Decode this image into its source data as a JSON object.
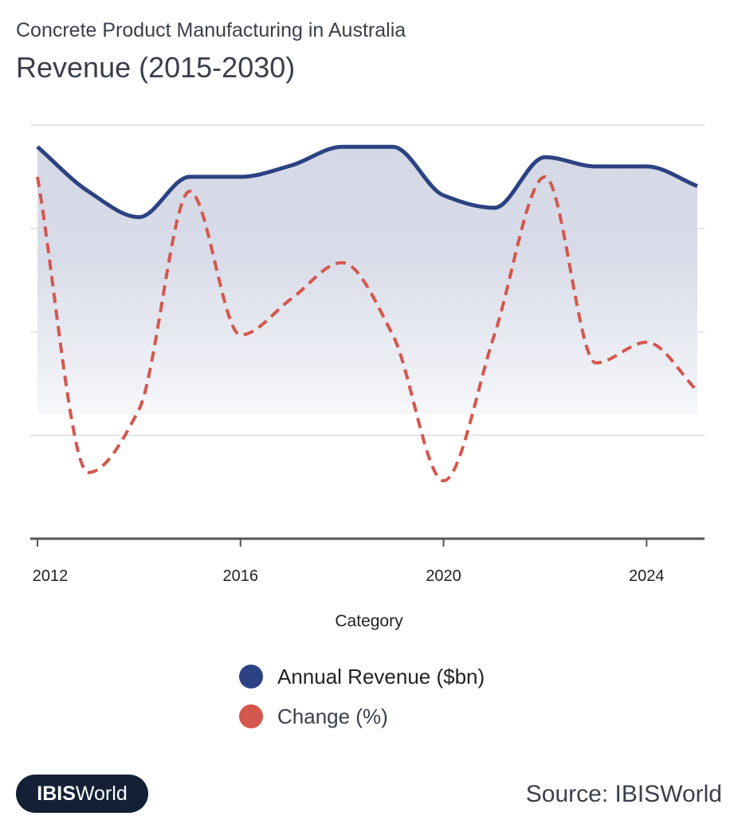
{
  "header": {
    "subtitle": "Concrete Product Manufacturing in Australia",
    "title": "Revenue (2015-2030)"
  },
  "chart_data": {
    "type": "line",
    "title": "Revenue (2015-2030)",
    "xlabel": "Category",
    "ylabel": "",
    "x": [
      2012,
      2013,
      2014,
      2015,
      2016,
      2017,
      2018,
      2019,
      2020,
      2021,
      2022,
      2023,
      2024,
      2025
    ],
    "xticks": [
      "2012",
      "2016",
      "2020",
      "2024"
    ],
    "xtick_values": [
      2012,
      2016,
      2020,
      2024
    ],
    "ylim": [
      0,
      4
    ],
    "grid": true,
    "legend_placement": "bottom",
    "series": [
      {
        "name": "Annual Revenue ($bn)",
        "color": "#2c4282",
        "style": "solid-area",
        "values": [
          3.79,
          3.36,
          3.11,
          3.5,
          3.5,
          3.61,
          3.79,
          3.79,
          3.32,
          3.2,
          3.69,
          3.6,
          3.6,
          3.41
        ]
      },
      {
        "name": "Change (%)",
        "color": "#d4574e",
        "style": "dashed",
        "values": [
          3.5,
          0.64,
          1.25,
          3.36,
          1.97,
          2.32,
          2.67,
          1.97,
          0.56,
          1.97,
          3.5,
          1.7,
          1.9,
          1.43
        ]
      }
    ]
  },
  "legend": {
    "items": [
      "Annual Revenue ($bn)",
      "Change (%)"
    ]
  },
  "footer": {
    "logo_bold": "IBIS",
    "logo_rest": "World",
    "source": "Source: IBISWorld"
  }
}
